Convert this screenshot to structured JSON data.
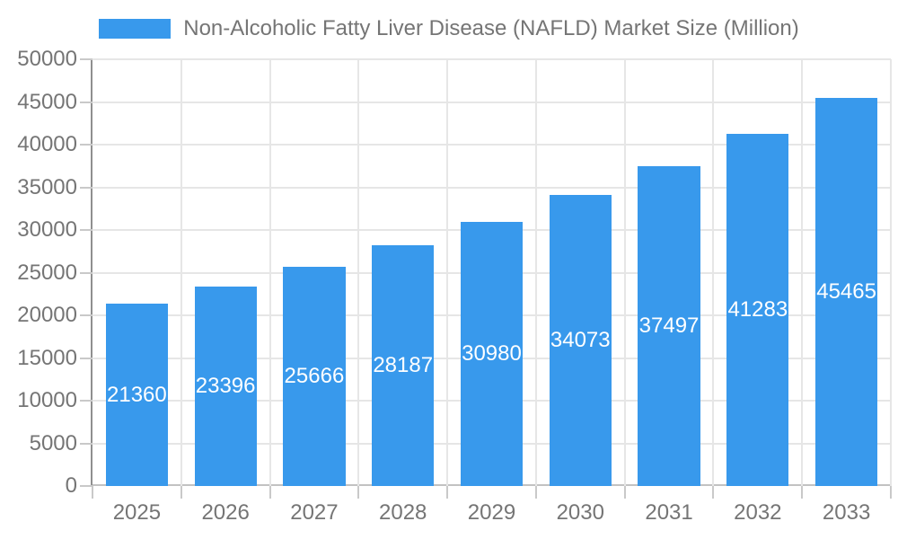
{
  "chart_data": {
    "type": "bar",
    "title": "Non-Alcoholic Fatty Liver Disease (NAFLD) Market Size (Million)",
    "categories": [
      "2025",
      "2026",
      "2027",
      "2028",
      "2029",
      "2030",
      "2031",
      "2032",
      "2033"
    ],
    "values": [
      21360,
      23396,
      25666,
      28187,
      30980,
      34073,
      37497,
      41283,
      45465
    ],
    "xlabel": "",
    "ylabel": "",
    "ylim": [
      0,
      50000
    ],
    "ytick_step": 5000,
    "yticks": [
      0,
      5000,
      10000,
      15000,
      20000,
      25000,
      30000,
      35000,
      40000,
      45000,
      50000
    ],
    "grid": true,
    "legend_position": "top",
    "bar_labels_visible": true
  },
  "legend": {
    "label": "Non-Alcoholic Fatty Liver Disease (NAFLD) Market Size (Million)"
  },
  "colors": {
    "bar": "#3899EC",
    "grid": "#E6E6E6",
    "axis_y": "#8F8F8F",
    "axis_x": "#C2C2C2",
    "tick": "#C9C9C9",
    "text": "#757575",
    "bar_label": "#FFFFFF",
    "background": "#FFFFFF"
  }
}
